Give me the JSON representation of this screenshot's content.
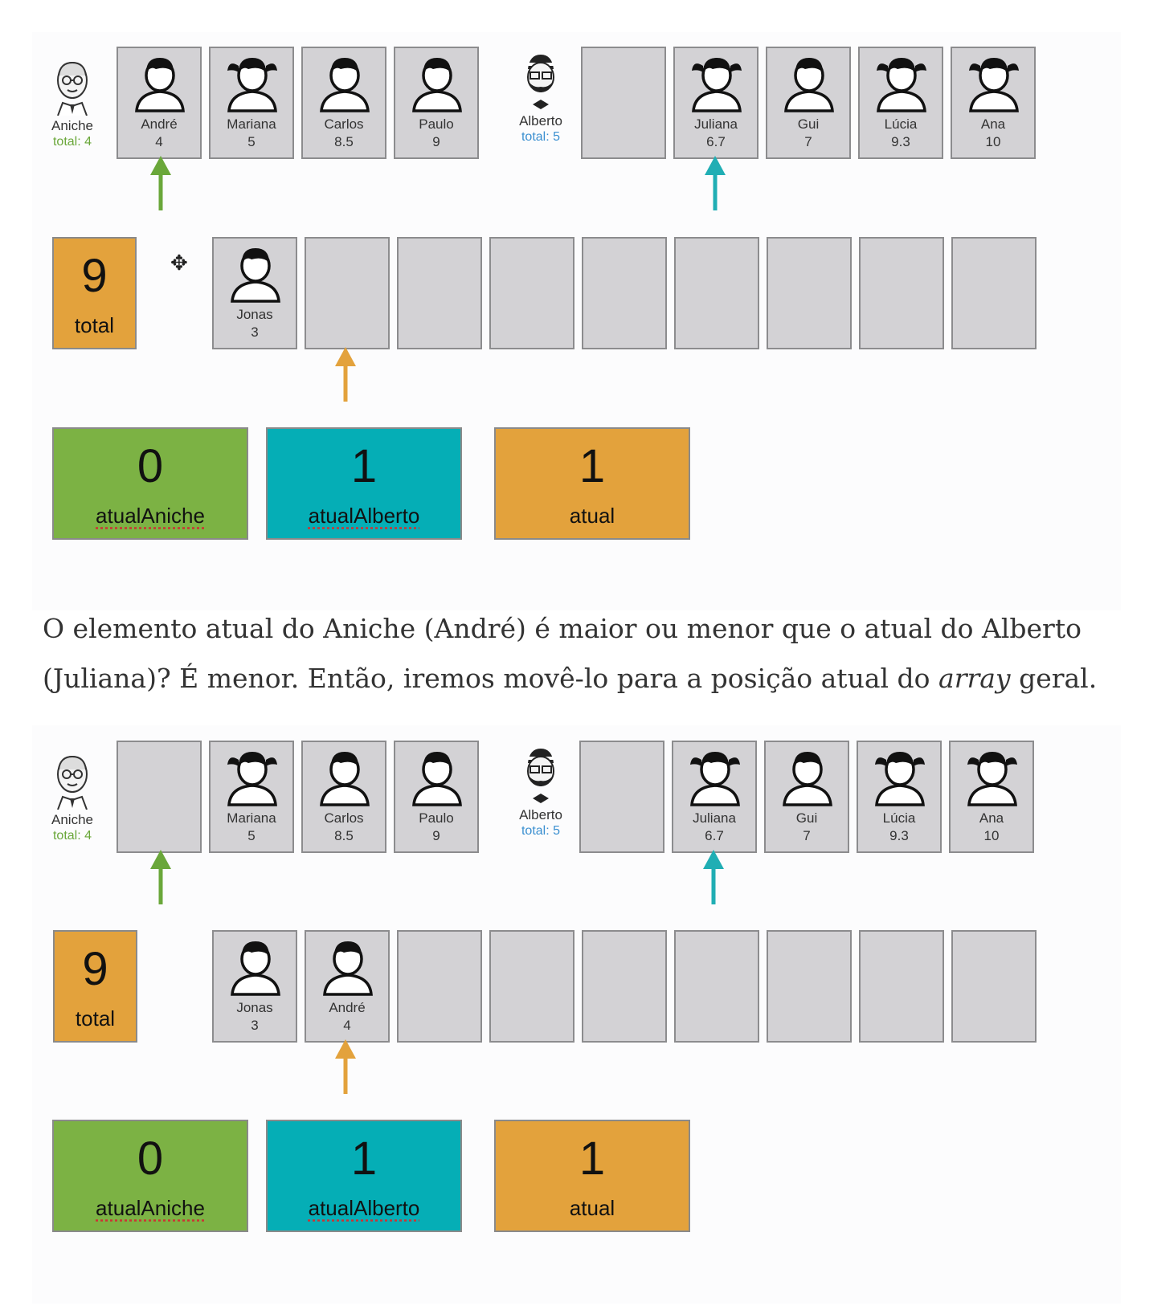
{
  "colors": {
    "aniche": "#7cb244",
    "alberto": "#05aeb6",
    "atual": "#e3a23c",
    "card": "#d3d2d5"
  },
  "step1": {
    "aniche": {
      "name": "Aniche",
      "total": "total: 4"
    },
    "alberto": {
      "name": "Alberto",
      "total": "total: 5"
    },
    "aniche_cards": [
      {
        "name": "André",
        "value": "4"
      },
      {
        "name": "Mariana",
        "value": "5"
      },
      {
        "name": "Carlos",
        "value": "8.5"
      },
      {
        "name": "Paulo",
        "value": "9"
      }
    ],
    "alberto_cards": [
      null,
      {
        "name": "Juliana",
        "value": "6.7"
      },
      {
        "name": "Gui",
        "value": "7"
      },
      {
        "name": "Lúcia",
        "value": "9.3"
      },
      {
        "name": "Ana",
        "value": "10"
      }
    ],
    "total_box": {
      "value": "9",
      "label": "total"
    },
    "result_cards": [
      {
        "name": "Jonas",
        "value": "3"
      },
      null,
      null,
      null,
      null,
      null,
      null,
      null,
      null
    ],
    "counters": [
      {
        "value": "0",
        "label": "atualAniche"
      },
      {
        "value": "1",
        "label": "atualAlberto"
      },
      {
        "value": "1",
        "label": "atual"
      }
    ]
  },
  "paragraph": {
    "part1": "O elemento atual do Aniche (André) é maior ou menor que o atual do Alberto (Juliana)? É menor. Então, iremos movê-lo para a posição atual do ",
    "italic": "array",
    "part2": " geral."
  },
  "step2": {
    "aniche": {
      "name": "Aniche",
      "total": "total: 4"
    },
    "alberto": {
      "name": "Alberto",
      "total": "total: 5"
    },
    "aniche_cards": [
      null,
      {
        "name": "Mariana",
        "value": "5"
      },
      {
        "name": "Carlos",
        "value": "8.5"
      },
      {
        "name": "Paulo",
        "value": "9"
      }
    ],
    "alberto_cards": [
      null,
      {
        "name": "Juliana",
        "value": "6.7"
      },
      {
        "name": "Gui",
        "value": "7"
      },
      {
        "name": "Lúcia",
        "value": "9.3"
      },
      {
        "name": "Ana",
        "value": "10"
      }
    ],
    "total_box": {
      "value": "9",
      "label": "total"
    },
    "result_cards": [
      {
        "name": "Jonas",
        "value": "3"
      },
      {
        "name": "André",
        "value": "4"
      },
      null,
      null,
      null,
      null,
      null,
      null,
      null
    ],
    "counters": [
      {
        "value": "0",
        "label": "atualAniche"
      },
      {
        "value": "1",
        "label": "atualAlberto"
      },
      {
        "value": "1",
        "label": "atual"
      }
    ]
  }
}
